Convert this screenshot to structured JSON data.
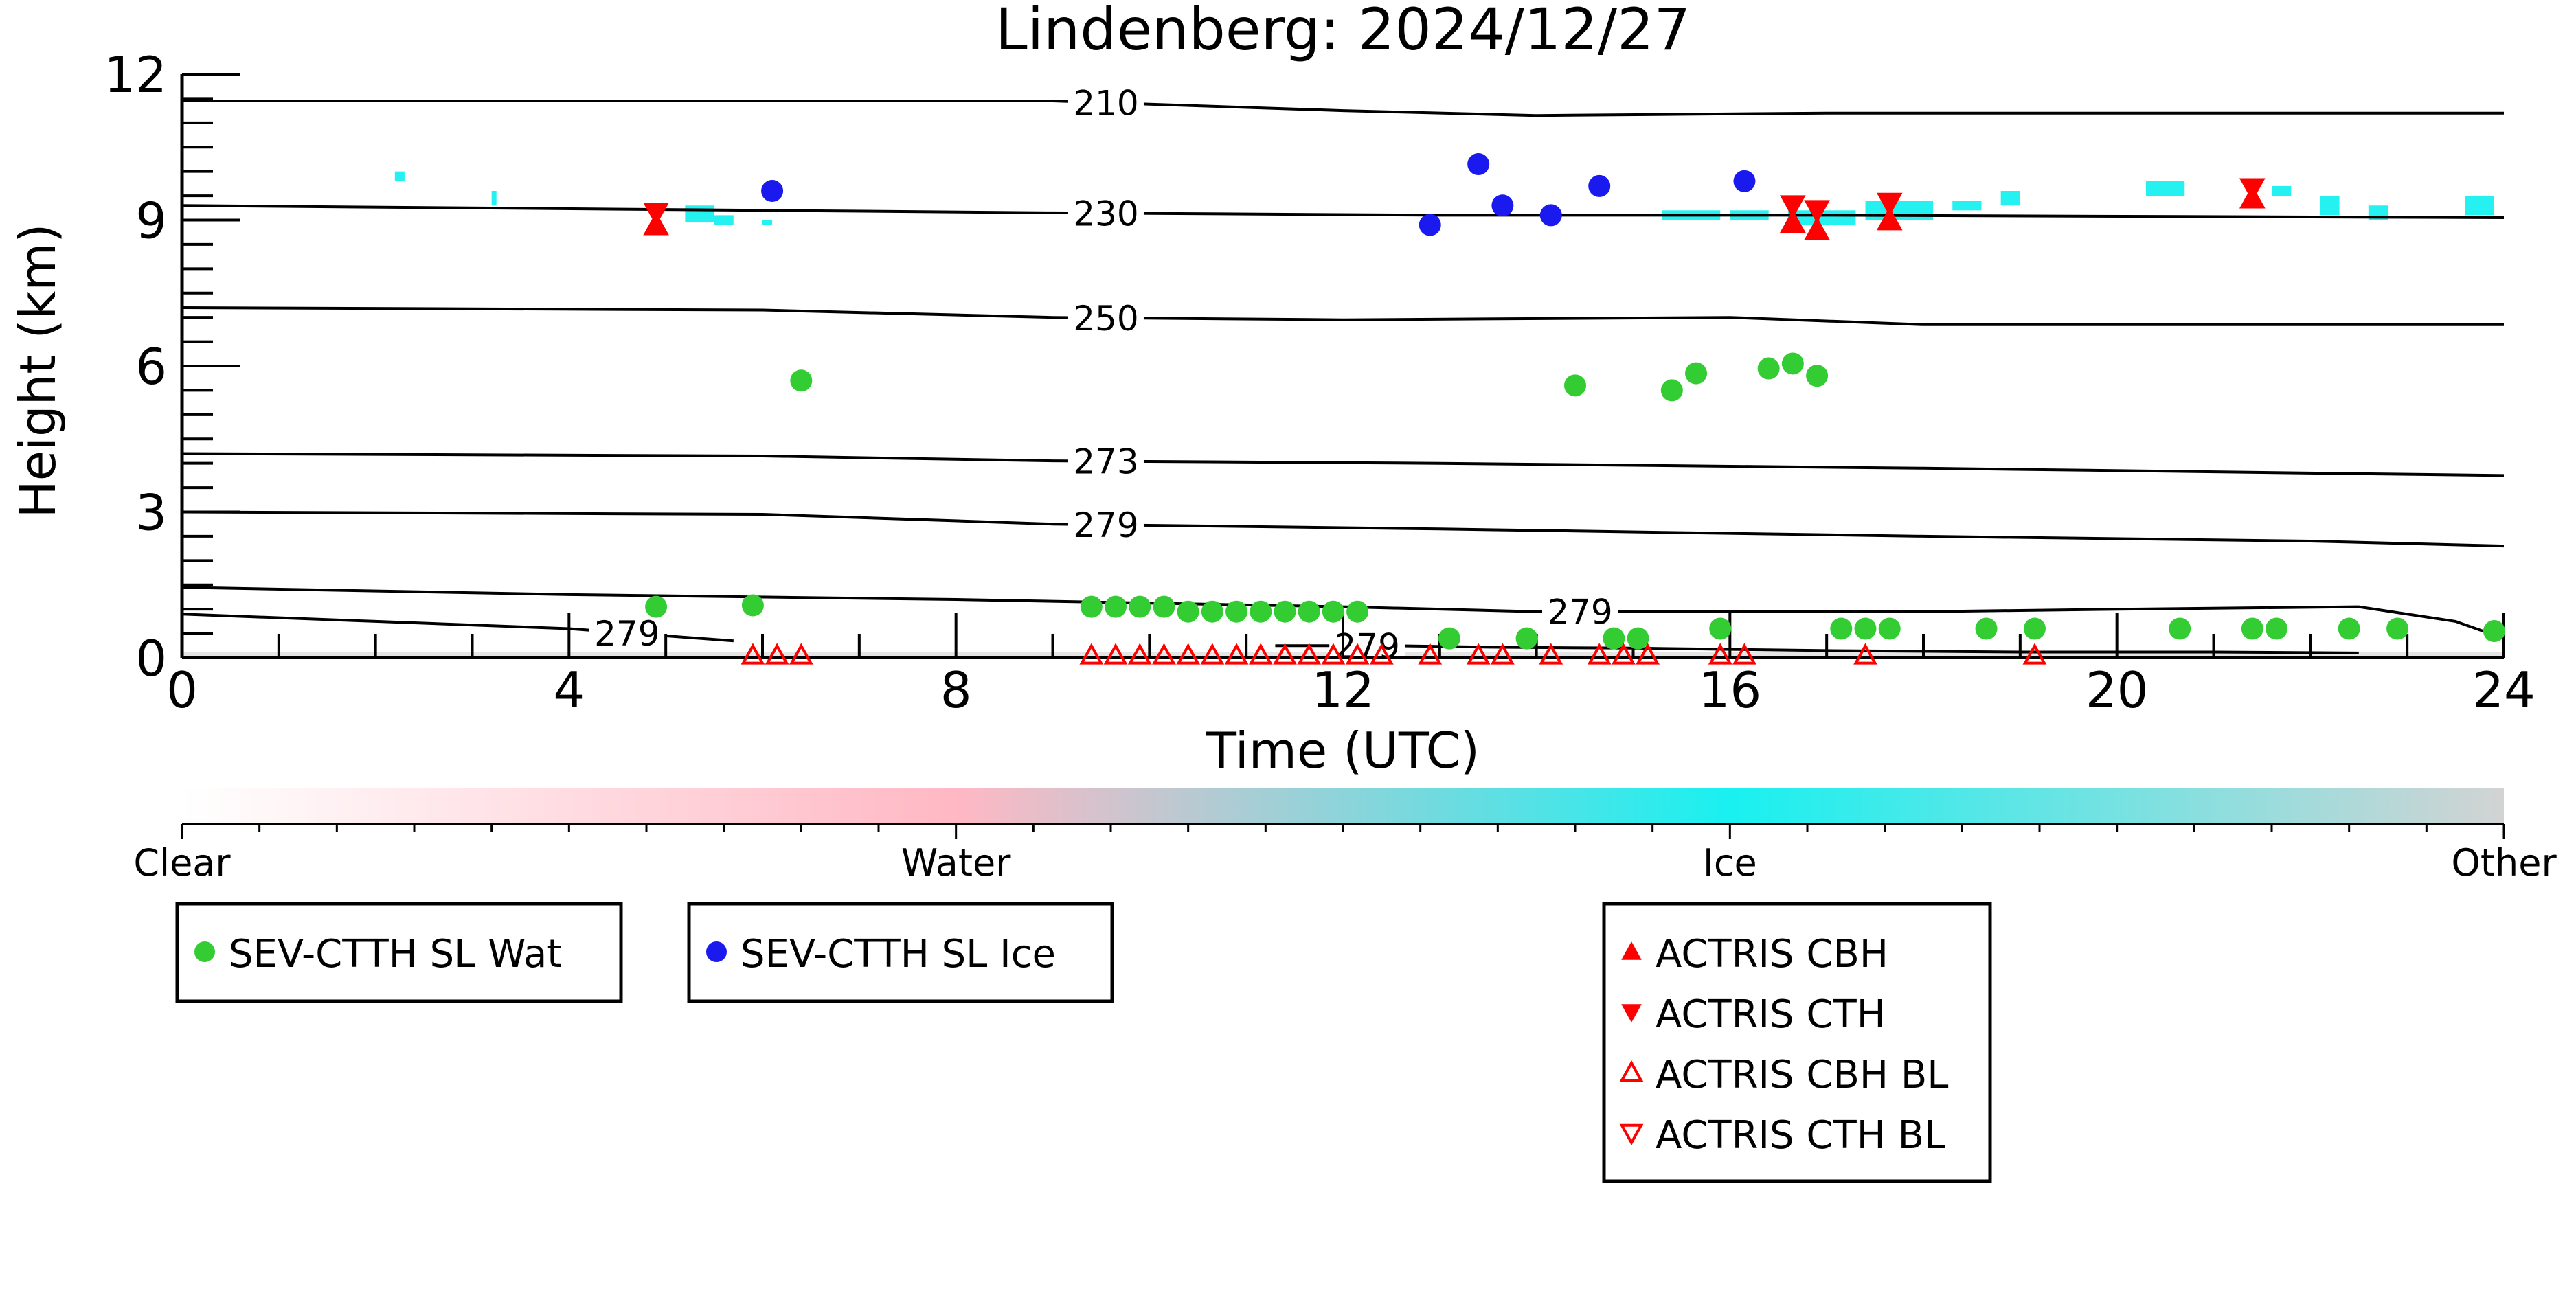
{
  "chart_data": {
    "type": "scatter",
    "title": "Lindenberg: 2024/12/27",
    "xlabel": "Time (UTC)",
    "ylabel": "Height (km)",
    "xlim": [
      0,
      24
    ],
    "ylim": [
      0,
      12
    ],
    "xticks": [
      0,
      4,
      8,
      12,
      16,
      20,
      24
    ],
    "yticks": [
      0,
      3,
      6,
      9,
      12
    ],
    "series": [
      {
        "name": "SEV-CTTH SL Wat",
        "marker": "circle",
        "color": "#33cc33",
        "x": [
          4.9,
          5.9,
          6.4,
          9.4,
          9.65,
          9.9,
          10.15,
          10.4,
          10.65,
          10.9,
          11.15,
          11.4,
          11.65,
          11.9,
          12.15,
          13.1,
          13.9,
          14.4,
          14.8,
          15.05,
          15.4,
          15.65,
          15.9,
          16.4,
          16.65,
          16.9,
          17.15,
          17.4,
          17.65,
          18.65,
          19.15,
          20.65,
          21.4,
          21.65,
          22.4,
          22.9,
          23.9
        ],
        "y": [
          1.05,
          1.08,
          5.7,
          1.05,
          1.05,
          1.05,
          1.05,
          0.95,
          0.95,
          0.95,
          0.95,
          0.95,
          0.95,
          0.95,
          0.95,
          0.4,
          0.4,
          5.6,
          0.4,
          0.4,
          5.5,
          5.85,
          0.6,
          5.95,
          6.05,
          5.8,
          0.6,
          0.6,
          0.6,
          0.6,
          0.6,
          0.6,
          0.6,
          0.6,
          0.6,
          0.6,
          0.55
        ]
      },
      {
        "name": "SEV-CTTH SL Ice",
        "marker": "circle",
        "color": "#1a1aee",
        "x": [
          6.1,
          12.9,
          13.4,
          13.65,
          14.15,
          14.65,
          16.15
        ],
        "y": [
          9.6,
          8.9,
          10.15,
          9.3,
          9.1,
          9.7,
          9.8
        ]
      },
      {
        "name": "ACTRIS CBH",
        "marker": "triangle-up",
        "color": "#ff0000",
        "x": [
          4.9,
          16.65,
          16.9,
          17.65,
          21.4
        ],
        "y": [
          8.9,
          8.95,
          8.8,
          9.0,
          9.45
        ]
      },
      {
        "name": "ACTRIS CTH",
        "marker": "triangle-down",
        "color": "#ff0000",
        "x": [
          4.9,
          16.65,
          16.9,
          17.65,
          21.4
        ],
        "y": [
          9.15,
          9.3,
          9.2,
          9.35,
          9.65
        ]
      },
      {
        "name": "ACTRIS CBH BL",
        "marker": "triangle-up-open",
        "color": "#ff0000",
        "x": [
          5.9,
          6.15,
          6.4,
          9.4,
          9.65,
          9.9,
          10.15,
          10.4,
          10.65,
          10.9,
          11.15,
          11.4,
          11.65,
          11.9,
          12.15,
          12.4,
          12.9,
          13.4,
          13.65,
          14.15,
          14.65,
          14.9,
          15.15,
          15.9,
          16.15,
          17.4,
          19.15
        ],
        "y": [
          0.05,
          0.05,
          0.05,
          0.05,
          0.05,
          0.05,
          0.05,
          0.05,
          0.05,
          0.05,
          0.05,
          0.05,
          0.05,
          0.05,
          0.05,
          0.05,
          0.05,
          0.05,
          0.05,
          0.05,
          0.05,
          0.05,
          0.05,
          0.05,
          0.05,
          0.05,
          0.05
        ]
      },
      {
        "name": "ACTRIS CTH BL",
        "marker": "triangle-down-open",
        "color": "#ff0000",
        "x": [],
        "y": []
      }
    ],
    "contours": [
      {
        "label": "210",
        "x": [
          0,
          6,
          9,
          12,
          14,
          17,
          24
        ],
        "y": [
          11.45,
          11.45,
          11.45,
          11.25,
          11.15,
          11.2,
          11.2
        ],
        "label_x": 9.55
      },
      {
        "label": "230",
        "x": [
          0,
          6,
          9,
          13,
          17,
          24
        ],
        "y": [
          9.3,
          9.2,
          9.15,
          9.1,
          9.1,
          9.05
        ],
        "label_x": 9.55
      },
      {
        "label": "250",
        "x": [
          0,
          6,
          9,
          12,
          16,
          18,
          24
        ],
        "y": [
          7.2,
          7.15,
          7.0,
          6.95,
          7.0,
          6.85,
          6.85
        ],
        "label_x": 9.55
      },
      {
        "label": "273",
        "x": [
          0,
          6,
          9,
          13,
          18,
          24
        ],
        "y": [
          4.2,
          4.15,
          4.05,
          4.0,
          3.9,
          3.75
        ],
        "label_x": 9.55
      },
      {
        "label": "279",
        "x": [
          0,
          6,
          9,
          13,
          18,
          22,
          24
        ],
        "y": [
          3.0,
          2.95,
          2.75,
          2.65,
          2.5,
          2.4,
          2.3
        ],
        "label_x": 9.55
      },
      {
        "label": "279",
        "x": [
          0,
          4,
          8,
          12,
          14,
          16,
          18,
          20,
          22.5,
          23.5,
          24
        ],
        "y": [
          1.45,
          1.3,
          1.2,
          1.05,
          0.95,
          0.95,
          0.95,
          1.0,
          1.05,
          0.75,
          0.4
        ],
        "label_x": 14.45
      },
      {
        "label": "279",
        "x": [
          0,
          2,
          4,
          5.7
        ],
        "y": [
          0.9,
          0.75,
          0.6,
          0.35
        ],
        "label_x": 4.6
      },
      {
        "label": "279",
        "x": [
          11.3,
          12.5,
          13.5,
          15,
          17,
          19,
          21,
          22.5
        ],
        "y": [
          0.25,
          0.25,
          0.22,
          0.2,
          0.15,
          0.12,
          0.12,
          0.1
        ],
        "label_x": 12.25
      }
    ],
    "cloud_type_pixels": {
      "category": "Ice",
      "color": "#19f0f0",
      "segments": [
        {
          "x": [
            2.2,
            2.3
          ],
          "y": [
            9.8,
            10.0
          ]
        },
        {
          "x": [
            3.2,
            3.25
          ],
          "y": [
            9.3,
            9.6
          ]
        },
        {
          "x": [
            5.2,
            5.5
          ],
          "y": [
            8.95,
            9.3
          ]
        },
        {
          "x": [
            5.5,
            5.7
          ],
          "y": [
            8.9,
            9.1
          ]
        },
        {
          "x": [
            6.0,
            6.1
          ],
          "y": [
            8.9,
            9.0
          ]
        },
        {
          "x": [
            15.3,
            15.9
          ],
          "y": [
            9.0,
            9.2
          ]
        },
        {
          "x": [
            16.0,
            16.4
          ],
          "y": [
            9.0,
            9.2
          ]
        },
        {
          "x": [
            16.6,
            17.3
          ],
          "y": [
            8.9,
            9.2
          ]
        },
        {
          "x": [
            17.4,
            18.1
          ],
          "y": [
            9.0,
            9.4
          ]
        },
        {
          "x": [
            18.3,
            18.6
          ],
          "y": [
            9.2,
            9.4
          ]
        },
        {
          "x": [
            18.8,
            19.0
          ],
          "y": [
            9.3,
            9.6
          ]
        },
        {
          "x": [
            20.3,
            20.7
          ],
          "y": [
            9.5,
            9.8
          ]
        },
        {
          "x": [
            21.6,
            21.8
          ],
          "y": [
            9.5,
            9.7
          ]
        },
        {
          "x": [
            22.1,
            22.3
          ],
          "y": [
            9.1,
            9.5
          ]
        },
        {
          "x": [
            22.6,
            22.8
          ],
          "y": [
            9.0,
            9.3
          ]
        },
        {
          "x": [
            23.6,
            23.9
          ],
          "y": [
            9.1,
            9.5
          ]
        }
      ]
    },
    "colorbar": {
      "labels": [
        "Clear",
        "Water",
        "Ice",
        "Other"
      ],
      "colors": [
        "#ffffff",
        "#ffb8c4",
        "#19f0f0",
        "#d3d3d3"
      ]
    },
    "legend_groups": [
      [
        "SEV-CTTH SL Wat"
      ],
      [
        "SEV-CTTH SL Ice"
      ],
      [
        "ACTRIS CBH",
        "ACTRIS CTH",
        "ACTRIS CBH BL",
        "ACTRIS CTH BL"
      ]
    ]
  }
}
